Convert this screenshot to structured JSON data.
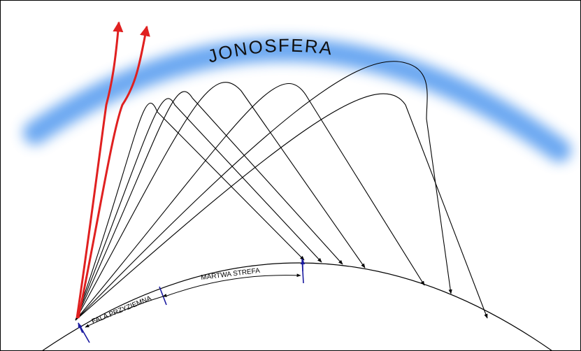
{
  "labels": {
    "ionosphere": "JONOSFERA",
    "ground_wave": "FALA PRZYZIEMNA",
    "skip_zone": "MARTWA STREFA"
  }
}
